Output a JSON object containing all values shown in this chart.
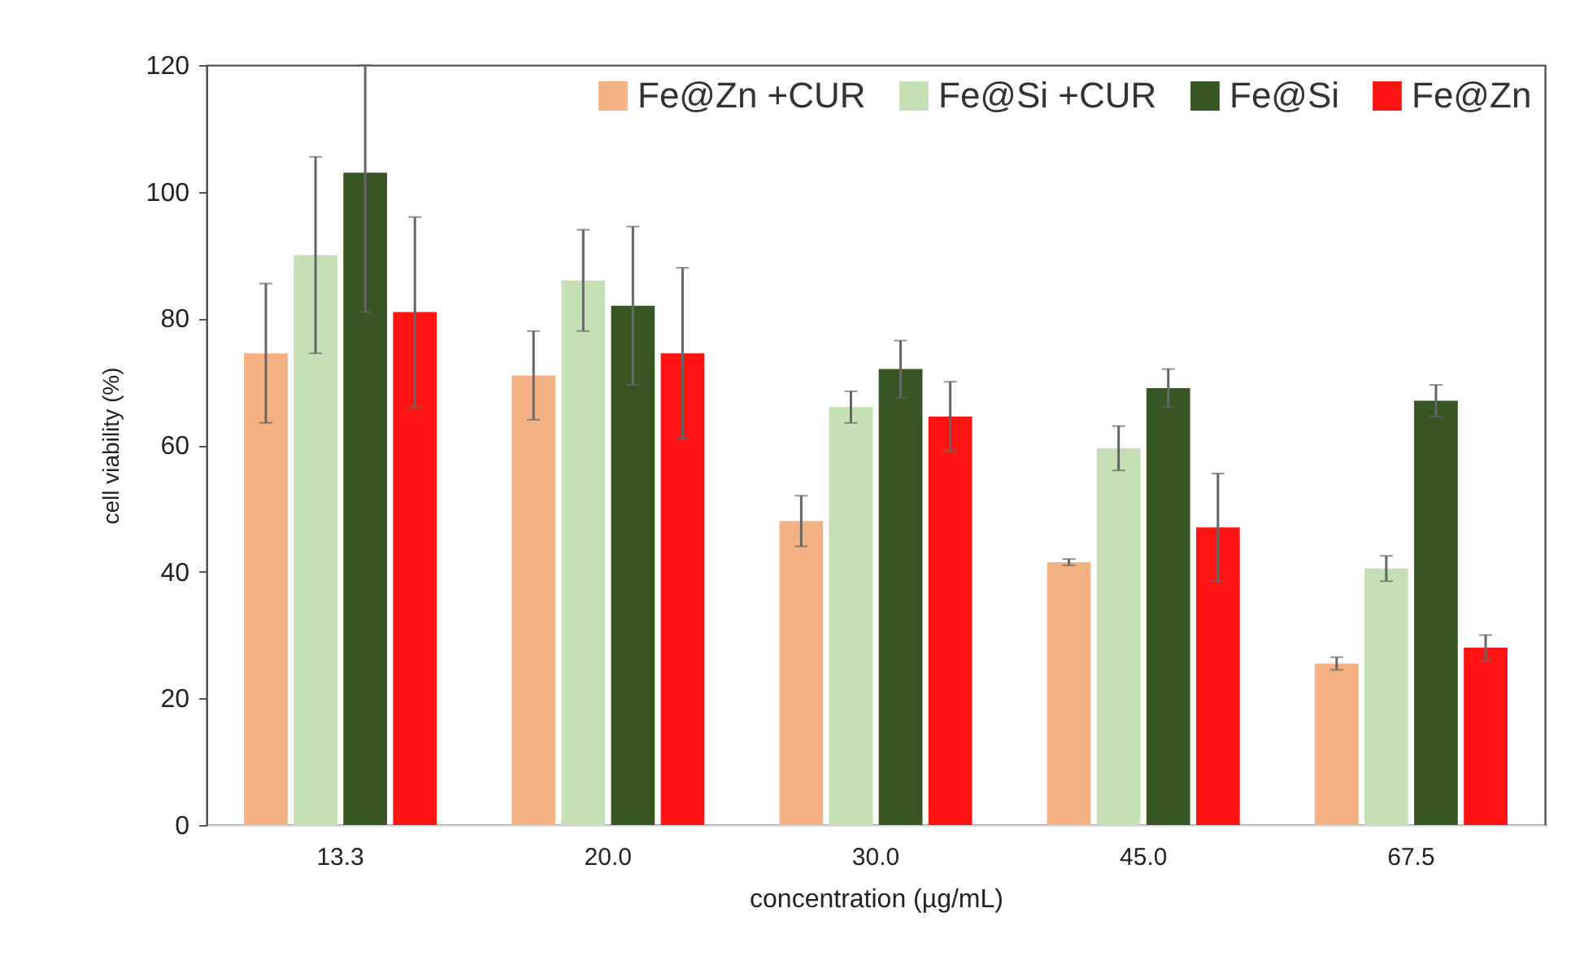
{
  "chart_data": {
    "type": "bar",
    "xlabel": "concentration (µg/mL)",
    "ylabel": "cell viability (%)",
    "categories": [
      "13.3",
      "20.0",
      "30.0",
      "45.0",
      "67.5"
    ],
    "series": [
      {
        "name": "Fe@Zn +CUR",
        "color": "#f4b183",
        "values": [
          74.5,
          71,
          48,
          41.5,
          25.5
        ],
        "errors": [
          11,
          7,
          4,
          0.5,
          1
        ]
      },
      {
        "name": "Fe@Si +CUR",
        "color": "#c5e0b4",
        "values": [
          90,
          86,
          66,
          59.5,
          40.5
        ],
        "errors": [
          15.5,
          8,
          2.5,
          3.5,
          2
        ]
      },
      {
        "name": "Fe@Si",
        "color": "#375623",
        "values": [
          103,
          82,
          72,
          69,
          67
        ],
        "errors": [
          [
            81,
            120
          ],
          12.5,
          4.5,
          3,
          2.5
        ]
      },
      {
        "name": "Fe@Zn",
        "color": "#ff1414",
        "values": [
          81,
          74.5,
          64.5,
          47,
          28
        ],
        "errors": [
          15,
          13.5,
          5.5,
          8.5,
          2
        ]
      }
    ],
    "ylim": [
      0,
      120
    ],
    "yticks": [
      0,
      20,
      40,
      60,
      80,
      100,
      120
    ],
    "legend": "top right"
  }
}
